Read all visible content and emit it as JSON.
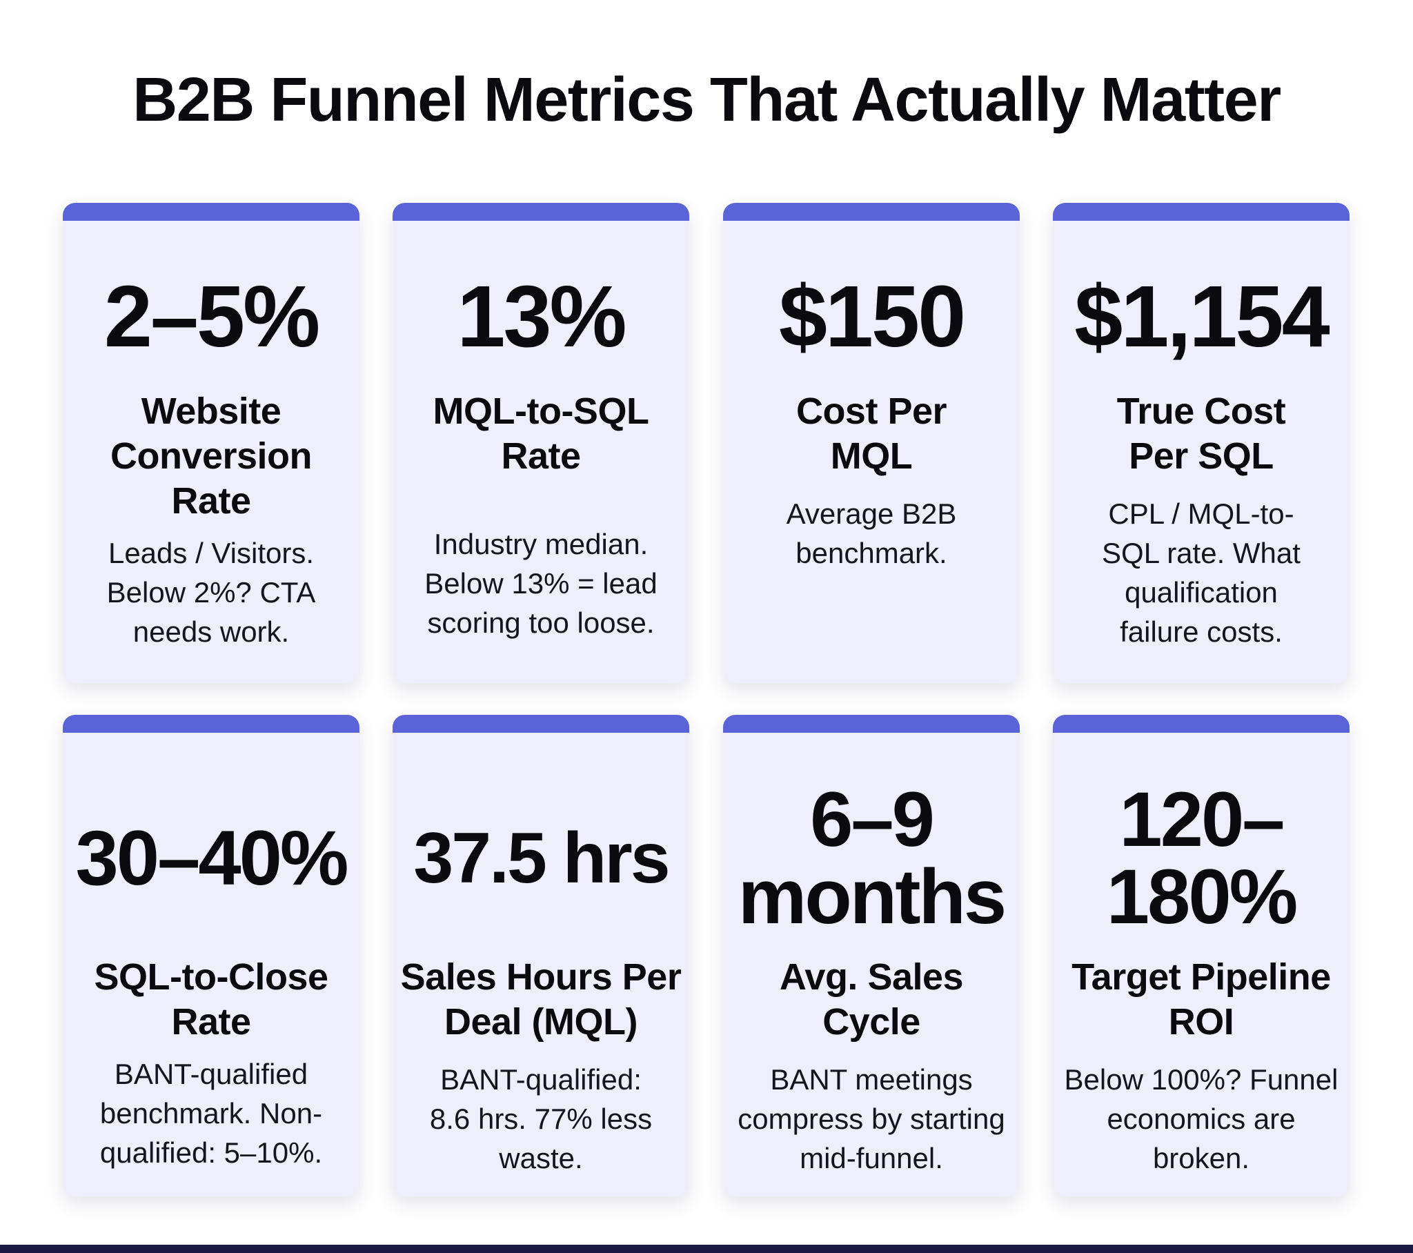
{
  "title": "B2B Funnel Metrics That Actually Matter",
  "colors": {
    "accent": "#5b63d8",
    "card_bg": "#eeeffb",
    "footer": "#1c1a40"
  },
  "cards": [
    {
      "value": "2–5%",
      "label": "Website Conversion Rate",
      "desc": "Leads / Visitors. Below 2%? CTA needs work."
    },
    {
      "value": "13%",
      "label": "MQL-to-SQL Rate",
      "desc": "Industry median. Below 13% = lead scoring too loose."
    },
    {
      "value": "$150",
      "label": "Cost Per MQL",
      "desc": "Average B2B benchmark."
    },
    {
      "value": "$1,154",
      "label": "True Cost Per SQL",
      "desc": "CPL / MQL-to-SQL rate. What qualification failure costs."
    },
    {
      "value": "30–40%",
      "label": "SQL-to-Close Rate",
      "desc": "BANT-qualified benchmark. Non-qualified: 5–10%."
    },
    {
      "value": "37.5 hrs",
      "label": "Sales Hours Per Deal (MQL)",
      "desc": "BANT-qualified: 8.6 hrs. 77% less waste."
    },
    {
      "value": "6–9 months",
      "label": "Avg. Sales Cycle",
      "desc": "BANT meetings compress by starting mid-funnel."
    },
    {
      "value": "120–180%",
      "label": "Target Pipeline ROI",
      "desc": "Below 100%? Funnel economics are broken."
    }
  ]
}
